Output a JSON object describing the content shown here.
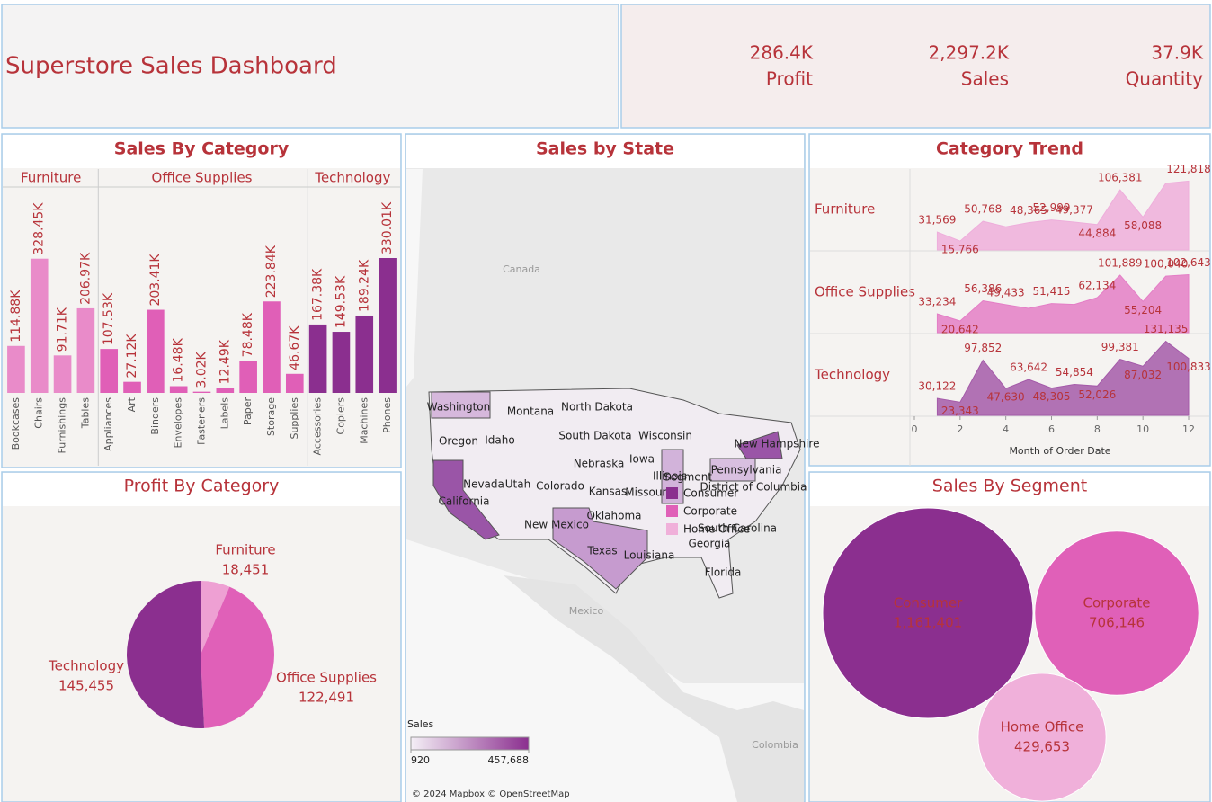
{
  "header": {
    "title": "Superstore Sales Dashboard"
  },
  "kpis": [
    {
      "value": "286.4K",
      "label": "Profit"
    },
    {
      "value": "2,297.2K",
      "label": "Sales"
    },
    {
      "value": "37.9K",
      "label": "Quantity"
    }
  ],
  "chart_data": [
    {
      "type": "bar",
      "title": "Sales By Category",
      "groups": [
        {
          "name": "Furniture",
          "color": "#e98bc9",
          "categories": [
            "Bookcases",
            "Chairs",
            "Furnishings",
            "Tables"
          ],
          "values": [
            114.88,
            328.45,
            91.71,
            206.97
          ],
          "value_labels": [
            "114.88K",
            "328.45K",
            "91.71K",
            "206.97K"
          ]
        },
        {
          "name": "Office Supplies",
          "color": "#e05fb7",
          "categories": [
            "Appliances",
            "Art",
            "Binders",
            "Envelopes",
            "Fasteners",
            "Labels",
            "Paper",
            "Storage",
            "Supplies"
          ],
          "values": [
            107.53,
            27.12,
            203.41,
            16.48,
            3.02,
            12.49,
            78.48,
            223.84,
            46.67
          ],
          "value_labels": [
            "107.53K",
            "27.12K",
            "203.41K",
            "16.48K",
            "3.02K",
            "12.49K",
            "78.48K",
            "223.84K",
            "46.67K"
          ]
        },
        {
          "name": "Technology",
          "color": "#8b2f8f",
          "categories": [
            "Accessories",
            "Copiers",
            "Machines",
            "Phones"
          ],
          "values": [
            167.38,
            149.53,
            189.24,
            330.01
          ],
          "value_labels": [
            "167.38K",
            "149.53K",
            "189.24K",
            "330.01K"
          ]
        }
      ]
    },
    {
      "type": "area",
      "title": "Category Trend",
      "x": [
        1,
        2,
        3,
        4,
        5,
        6,
        7,
        8,
        9,
        10,
        11,
        12
      ],
      "xlim": [
        0,
        12
      ],
      "xticks": [
        0,
        2,
        4,
        6,
        8,
        10,
        12
      ],
      "ylim": [
        0,
        140000
      ],
      "xlabel": "Month of Order Date",
      "series": [
        {
          "name": "Furniture",
          "color": "#eeaedb",
          "values": [
            31569,
            15766,
            50768,
            41000,
            48365,
            52999,
            49377,
            44884,
            106381,
            58088,
            118000,
            121818
          ],
          "value_labels": [
            "31,569",
            "15,766",
            "50,768",
            null,
            "48,365",
            "52,999",
            "49,377",
            "44,884",
            "106,381",
            "58,088",
            null,
            "121,818"
          ]
        },
        {
          "name": "Office Supplies",
          "color": "#e47ec6",
          "values": [
            33234,
            20642,
            56386,
            49433,
            43000,
            51415,
            50000,
            62134,
            101889,
            55204,
            100040,
            102643
          ],
          "value_labels": [
            "33,234",
            "20,642",
            "56,386",
            "49,433",
            null,
            "51,415",
            null,
            "62,134",
            "101,889",
            "55,204",
            "100,040",
            "102,643"
          ]
        },
        {
          "name": "Technology",
          "color": "#a45aa9",
          "values": [
            30122,
            23343,
            97852,
            47630,
            63642,
            48305,
            54854,
            52026,
            99381,
            87032,
            131135,
            100833
          ],
          "value_labels": [
            "30,122",
            "23,343",
            "97,852",
            "47,630",
            "63,642",
            "48,305",
            "54,854",
            "52,026",
            "99,381",
            "87,032",
            "131,135",
            "100,833"
          ]
        }
      ]
    },
    {
      "type": "pie",
      "title": "Profit By Category",
      "categories": [
        "Furniture",
        "Office Supplies",
        "Technology"
      ],
      "values": [
        18451,
        122491,
        145455
      ],
      "value_labels": [
        "18,451",
        "122,491",
        "145,455"
      ],
      "colors": [
        "#eea0d3",
        "#e060b8",
        "#8b2f8f"
      ]
    },
    {
      "type": "bubble",
      "title": "Sales By Segment",
      "categories": [
        "Consumer",
        "Corporate",
        "Home Office"
      ],
      "values": [
        1161401,
        706146,
        429653
      ],
      "value_labels": [
        "1,161,401",
        "706,146",
        "429,653"
      ],
      "colors": [
        "#8b2f8f",
        "#e060b8",
        "#f0b0da"
      ]
    },
    {
      "type": "map",
      "title": "Sales by State",
      "places": [
        "Canada",
        "Mexico",
        "Colombia"
      ],
      "states": [
        "Washington",
        "Montana",
        "North Dakota",
        "Oregon",
        "Idaho",
        "South Dakota",
        "Wisconsin",
        "Nebraska",
        "Iowa",
        "Nevada",
        "Utah",
        "Colorado",
        "Kansas",
        "Missouri",
        "Illinois",
        "California",
        "New Mexico",
        "Oklahoma",
        "Texas",
        "Louisiana",
        "Georgia",
        "Florida",
        "South Carolina",
        "Pennsylvania",
        "District of Columbia",
        "New Hampshire"
      ],
      "legend_title": "Sales",
      "legend_ticks": [
        920,
        {
          "value": 457688,
          "label": "457,688"
        }
      ],
      "segment_legend": {
        "title": "Segment",
        "items": [
          "Consumer",
          "Corporate",
          "Home Office"
        ],
        "colors": [
          "#8b2f8f",
          "#e060b8",
          "#f0b0da"
        ]
      },
      "credit": "© 2024 Mapbox © OpenStreetMap"
    }
  ]
}
